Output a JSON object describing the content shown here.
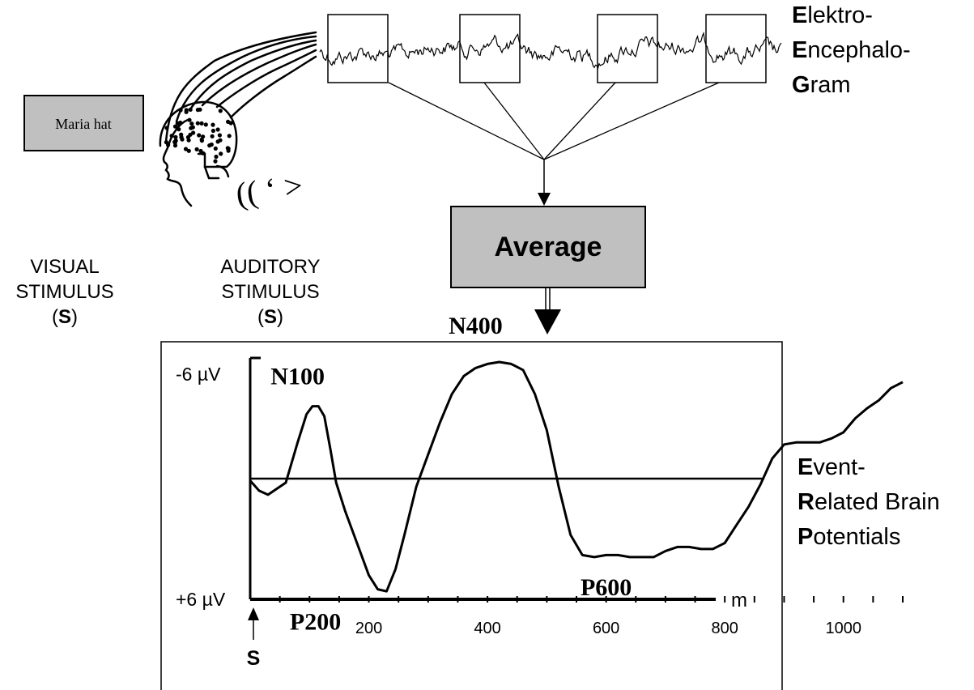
{
  "visual_stimulus_box": "Maria hat",
  "visual_stimulus_caption": {
    "line1": "VISUAL",
    "line2": "STIMULUS",
    "open": "(",
    "symbol": "S",
    "close": ")"
  },
  "auditory_stimulus_caption": {
    "line1": "AUDITORY",
    "line2": "STIMULUS",
    "open": "(",
    "symbol": "S",
    "close": ")"
  },
  "sound_glyph": "(( ‘ >",
  "eeg_label": [
    {
      "initial": "E",
      "rest": "lektro-"
    },
    {
      "initial": "E",
      "rest": "ncephalo-"
    },
    {
      "initial": "G",
      "rest": "ram"
    }
  ],
  "average_label": "Average",
  "erp_label": [
    {
      "initial": "E",
      "rest": "vent-"
    },
    {
      "initial": "R",
      "rest": "elated Brain"
    },
    {
      "initial": "P",
      "rest": "otentials"
    }
  ],
  "colors": {
    "box_fill": "#c0c0c0",
    "ink": "#000000",
    "background": "#ffffff"
  },
  "chart_data": {
    "type": "line",
    "y_top_label": "-6 µV",
    "y_bottom_label": "+6 µV",
    "x_unit": "m",
    "x_ticks": [
      200,
      400,
      600,
      800,
      1000
    ],
    "stimulus_marker": "S",
    "xlim": [
      0,
      1100
    ],
    "ylim": [
      6,
      -6
    ],
    "series": [
      {
        "x": [
          0,
          15,
          30,
          60,
          80,
          95,
          105,
          115,
          125,
          135,
          145,
          160,
          180,
          200,
          215,
          230,
          245,
          260,
          280,
          300,
          320,
          340,
          360,
          380,
          400,
          420,
          440,
          460,
          480,
          500,
          520,
          540,
          560,
          580,
          600,
          620,
          640,
          660,
          680,
          700,
          720,
          740,
          760,
          780,
          800,
          820,
          840,
          860,
          880,
          900,
          920,
          940,
          960,
          980,
          1000,
          1020,
          1040,
          1060,
          1080,
          1100
        ],
        "y": [
          0.1,
          0.6,
          0.8,
          0.2,
          -1.8,
          -3.2,
          -3.6,
          -3.6,
          -3.1,
          -1.5,
          0.2,
          1.6,
          3.2,
          4.8,
          5.5,
          5.6,
          4.5,
          2.8,
          0.4,
          -1.2,
          -2.8,
          -4.2,
          -5.1,
          -5.5,
          -5.7,
          -5.8,
          -5.7,
          -5.4,
          -4.2,
          -2.4,
          0.4,
          2.8,
          3.8,
          3.9,
          3.8,
          3.8,
          3.9,
          3.9,
          3.9,
          3.6,
          3.4,
          3.4,
          3.5,
          3.5,
          3.2,
          2.3,
          1.4,
          0.3,
          -1.0,
          -1.7,
          -1.8,
          -1.8,
          -1.8,
          -2.0,
          -2.3,
          -3.0,
          -3.5,
          -3.9,
          -4.5,
          -4.8
        ]
      }
    ],
    "annotations": [
      {
        "text": "N100",
        "x": 80,
        "y": -4.7
      },
      {
        "text": "N400",
        "x": 380,
        "y": -7.2
      },
      {
        "text": "P200",
        "x": 110,
        "y": 7.5
      },
      {
        "text": "P600",
        "x": 600,
        "y": 5.8
      }
    ]
  }
}
